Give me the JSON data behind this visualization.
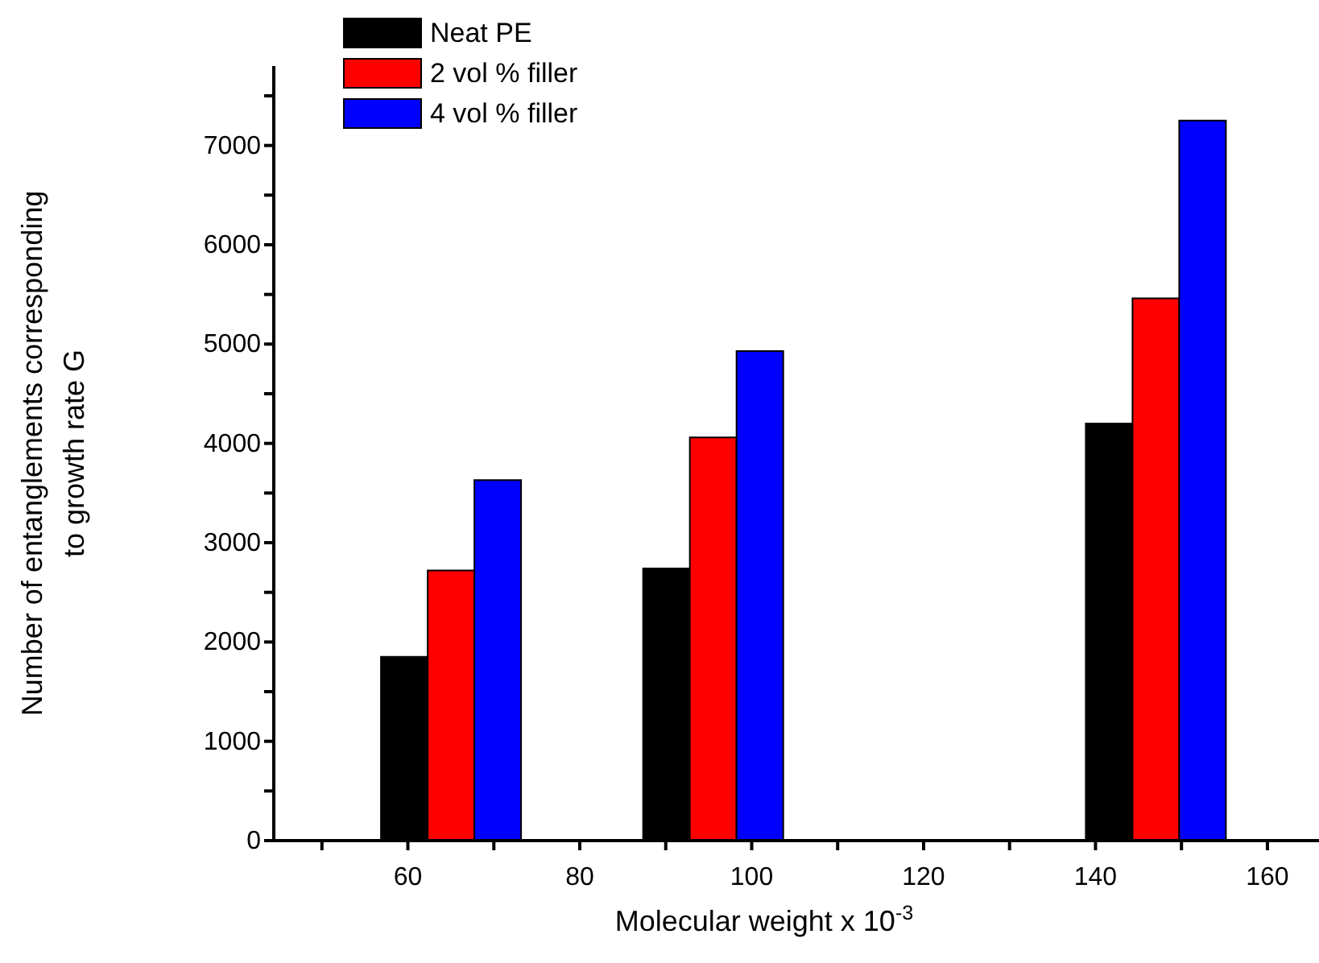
{
  "chart_data": {
    "type": "bar",
    "xlabel": "Molecular weight x 10$^{-3}$",
    "ylabel": "Number of entanglements corresponding\nto growth rate G",
    "x": [
      65,
      95.5,
      147
    ],
    "series": [
      {
        "name": "Neat PE",
        "color": "#000000",
        "values": [
          1850,
          2740,
          4200
        ]
      },
      {
        "name": "2 vol % filler",
        "color": "#ff0000",
        "values": [
          2720,
          4060,
          5460
        ]
      },
      {
        "name": "4 vol % filler",
        "color": "#0000ff",
        "values": [
          3630,
          4930,
          7250
        ]
      }
    ],
    "xlim": [
      44.4,
      166
    ],
    "xticks": [
      {
        "value": 50,
        "label": null
      },
      60,
      {
        "value": 70,
        "label": null
      },
      80,
      {
        "value": 90,
        "label": null
      },
      100,
      {
        "value": 110,
        "label": null
      },
      120,
      {
        "value": 130,
        "label": null
      },
      140,
      {
        "value": 150,
        "label": null
      },
      160
    ],
    "ylim": [
      0,
      7800
    ],
    "yticks": [
      0,
      {
        "value": 500,
        "label": null
      },
      1000,
      {
        "value": 1500,
        "label": null
      },
      2000,
      {
        "value": 2500,
        "label": null
      },
      3000,
      {
        "value": 3500,
        "label": null
      },
      4000,
      {
        "value": 4500,
        "label": null
      },
      5000,
      {
        "value": 5500,
        "label": null
      },
      6000,
      {
        "value": 6500,
        "label": null
      },
      7000,
      {
        "value": 7500,
        "label": null
      }
    ],
    "grid": false,
    "legend": "top left"
  }
}
